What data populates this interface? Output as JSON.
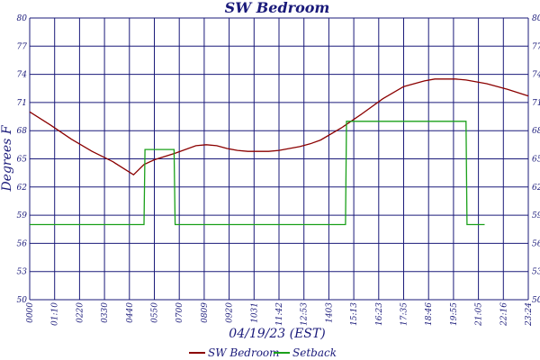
{
  "chart_data": {
    "type": "line",
    "title": "SW Bedroom",
    "xlabel": "04/19/23 (EST)",
    "ylabel": "Degrees F",
    "y_ticks": [
      "50",
      "53",
      "56",
      "59",
      "62",
      "65",
      "68",
      "71",
      "74",
      "77",
      "80"
    ],
    "ylim": [
      50,
      80
    ],
    "x_ticks": [
      "0000",
      "01:10",
      "0220",
      "0330",
      "0440",
      "0550",
      "0700",
      "0809",
      "0920",
      "1031",
      "11:42",
      "12:53",
      "1403",
      "15:13",
      "16:23",
      "17:35",
      "18:46",
      "19:55",
      "21:05",
      "22:16",
      "23:24"
    ],
    "grid": true,
    "legend_position": "bottom",
    "colors": {
      "SW Bedroom": "#8b0000",
      "Setback": "#1aa01a",
      "grid": "#1a1a7a",
      "text": "#1a1a7a"
    },
    "series": [
      {
        "name": "SW Bedroom",
        "x": [
          0,
          1,
          2,
          3,
          4,
          5,
          5.5,
          6,
          7,
          8,
          8.5,
          9,
          9.5,
          10,
          10.5,
          11,
          11.5,
          12,
          12.5,
          13,
          13.5,
          14,
          15,
          16,
          17,
          18,
          19,
          19.5,
          20,
          20.5,
          21,
          22,
          23,
          24
        ],
        "values": [
          70.0,
          68.6,
          67.1,
          65.8,
          64.7,
          63.3,
          64.4,
          64.9,
          65.6,
          66.4,
          66.5,
          66.4,
          66.1,
          65.9,
          65.8,
          65.8,
          65.8,
          65.9,
          66.1,
          66.3,
          66.6,
          67.0,
          68.3,
          69.8,
          71.4,
          72.7,
          73.3,
          73.5,
          73.5,
          73.5,
          73.4,
          73.0,
          72.4,
          71.7
        ]
      },
      {
        "name": "Setback",
        "x": [
          0,
          5.5,
          5.55,
          6.95,
          7.0,
          15.2,
          15.25,
          21.0,
          21.05,
          21.9
        ],
        "values": [
          58.0,
          58.0,
          66.0,
          66.0,
          58.0,
          58.0,
          69.0,
          69.0,
          58.0,
          58.0
        ]
      }
    ]
  }
}
